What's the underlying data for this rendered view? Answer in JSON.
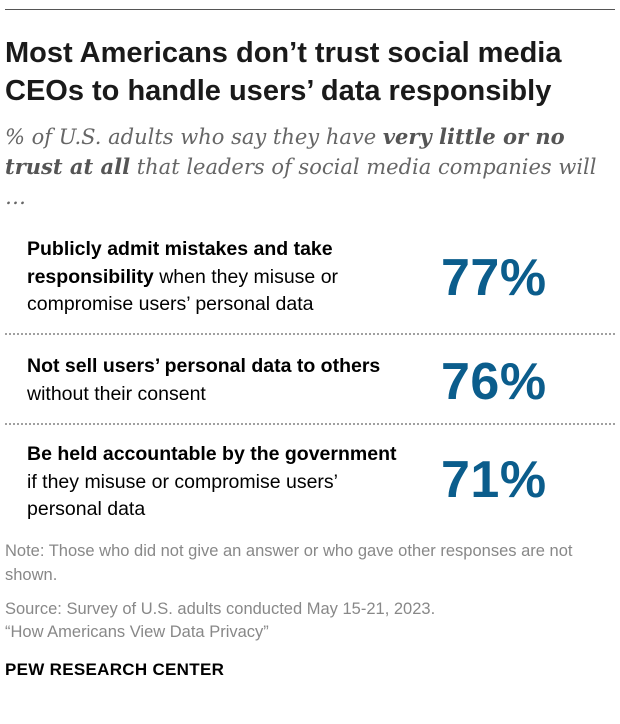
{
  "title": "Most Americans don’t trust social media CEOs to handle users’ data responsibly",
  "subtitle": {
    "pre": "% of U.S. adults who say they have ",
    "emphasis": "very little or no trust at all",
    "post": " that leaders of social media companies will …"
  },
  "chart_data": {
    "type": "table",
    "unit": "%",
    "rows": [
      {
        "label_bold": "Publicly admit mistakes and take responsibility",
        "label_rest": " when they misuse or compromise users’ personal data",
        "value": 77,
        "display": "77%"
      },
      {
        "label_bold": "Not sell users’ personal data to others",
        "label_rest": " without their consent",
        "value": 76,
        "display": "76%"
      },
      {
        "label_bold": "Be held accountable by the government",
        "label_rest": " if they misuse or compromise users’ personal data",
        "value": 71,
        "display": "71%"
      }
    ]
  },
  "footer": {
    "note": "Note: Those who did not give an answer or who gave other responses are not shown.",
    "source_line1": "Source: Survey of U.S. adults conducted May 15-21, 2023.",
    "source_line2": "“How Americans View Data Privacy”",
    "brand": "PEW RESEARCH CENTER"
  },
  "colors": {
    "value": "#0b5d8c",
    "title": "#1a1a1a",
    "subtitle": "#666666",
    "footer": "#888888"
  }
}
